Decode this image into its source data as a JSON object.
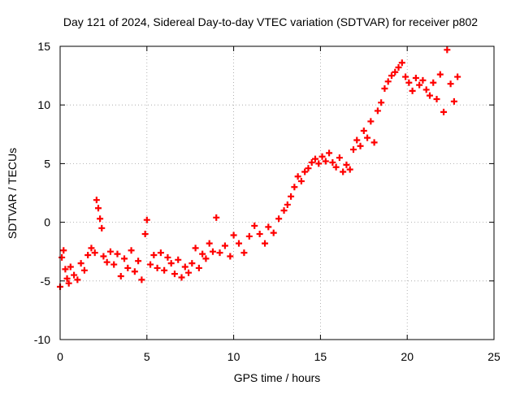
{
  "chart_data": {
    "type": "scatter",
    "title": "Day 121 of 2024, Sidereal Day-to-day VTEC variation (SDTVAR) for receiver p802",
    "xlabel": "GPS time / hours",
    "ylabel": "SDTVAR / TECUs",
    "xlim": [
      0,
      25
    ],
    "ylim": [
      -10,
      15
    ],
    "xticks": [
      0,
      5,
      10,
      15,
      20,
      25
    ],
    "yticks": [
      -10,
      -5,
      0,
      5,
      10,
      15
    ],
    "xtick_labels": [
      "0",
      "5",
      "10",
      "15",
      "20",
      "25"
    ],
    "ytick_labels": [
      "-10",
      "-5",
      "0",
      "5",
      "10",
      "15"
    ],
    "grid": true,
    "marker": "plus",
    "marker_color": "#ff0000",
    "series": [
      {
        "name": "SDTVAR",
        "x": [
          0.0,
          0.1,
          0.2,
          0.3,
          0.4,
          0.5,
          0.6,
          0.8,
          1.0,
          1.2,
          1.4,
          1.6,
          1.8,
          2.0,
          2.1,
          2.2,
          2.3,
          2.4,
          2.5,
          2.7,
          2.9,
          3.1,
          3.3,
          3.5,
          3.7,
          3.9,
          4.1,
          4.3,
          4.5,
          4.7,
          4.9,
          5.0,
          5.2,
          5.4,
          5.6,
          5.8,
          6.0,
          6.2,
          6.4,
          6.6,
          6.8,
          7.0,
          7.2,
          7.4,
          7.6,
          7.8,
          8.0,
          8.2,
          8.4,
          8.6,
          8.8,
          9.0,
          9.2,
          9.5,
          9.8,
          10.0,
          10.3,
          10.6,
          10.9,
          11.2,
          11.5,
          11.8,
          12.0,
          12.3,
          12.6,
          12.9,
          13.1,
          13.3,
          13.5,
          13.7,
          13.9,
          14.1,
          14.3,
          14.5,
          14.7,
          14.9,
          15.1,
          15.3,
          15.5,
          15.7,
          15.9,
          16.1,
          16.3,
          16.5,
          16.7,
          16.9,
          17.1,
          17.3,
          17.5,
          17.7,
          17.9,
          18.1,
          18.3,
          18.5,
          18.7,
          18.9,
          19.1,
          19.3,
          19.5,
          19.7,
          19.9,
          20.1,
          20.3,
          20.5,
          20.7,
          20.9,
          21.1,
          21.3,
          21.5,
          21.7,
          21.9,
          22.1,
          22.3,
          22.5,
          22.7,
          22.9
        ],
        "y": [
          -5.5,
          -3.0,
          -2.4,
          -4.0,
          -4.8,
          -5.2,
          -3.8,
          -4.5,
          -4.9,
          -3.5,
          -4.1,
          -2.8,
          -2.2,
          -2.6,
          1.9,
          1.2,
          0.3,
          -0.5,
          -2.9,
          -3.4,
          -2.5,
          -3.6,
          -2.7,
          -4.6,
          -3.1,
          -3.9,
          -2.4,
          -4.2,
          -3.3,
          -4.9,
          -1.0,
          0.2,
          -3.6,
          -2.8,
          -3.9,
          -2.6,
          -4.1,
          -3.0,
          -3.5,
          -4.4,
          -3.2,
          -4.7,
          -3.8,
          -4.3,
          -3.5,
          -2.2,
          -3.9,
          -2.7,
          -3.1,
          -1.8,
          -2.5,
          0.4,
          -2.6,
          -2.0,
          -2.9,
          -1.1,
          -1.8,
          -2.6,
          -1.2,
          -0.3,
          -1.0,
          -1.8,
          -0.4,
          -0.9,
          0.3,
          1.0,
          1.5,
          2.2,
          3.0,
          3.9,
          3.5,
          4.3,
          4.6,
          5.1,
          5.4,
          5.0,
          5.6,
          5.2,
          5.9,
          5.1,
          4.7,
          5.5,
          4.3,
          4.9,
          4.5,
          6.2,
          7.0,
          6.5,
          7.8,
          7.2,
          8.6,
          6.8,
          9.5,
          10.2,
          11.4,
          12.0,
          12.5,
          12.8,
          13.2,
          13.6,
          12.4,
          11.9,
          11.2,
          12.3,
          11.7,
          12.1,
          11.3,
          10.8,
          11.9,
          10.5,
          12.6,
          9.4,
          14.7,
          11.8,
          10.3,
          12.4
        ]
      }
    ]
  }
}
